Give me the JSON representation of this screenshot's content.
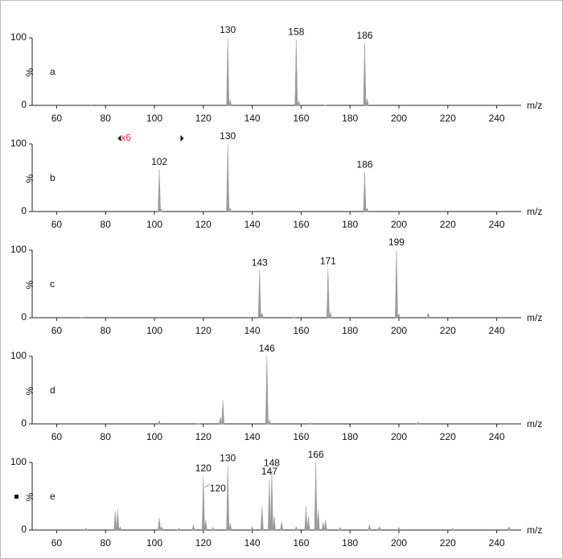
{
  "chart_data": [
    {
      "type": "bar",
      "label": "a",
      "ylabel": "%",
      "xlabel": "m/z",
      "color": "#9a9a9a",
      "x": [
        74,
        130,
        131,
        158,
        159,
        170,
        186,
        187
      ],
      "values": [
        2,
        100,
        8,
        97,
        7,
        1,
        92,
        10
      ],
      "annotations": [
        130,
        158,
        186
      ],
      "xlim": [
        50,
        250
      ],
      "xticks": [
        60,
        80,
        100,
        120,
        140,
        160,
        180,
        200,
        220,
        240
      ],
      "ylim": [
        0,
        100
      ],
      "yticks": [
        0,
        100
      ]
    },
    {
      "type": "bar",
      "label": "b",
      "ylabel": "%",
      "xlabel": "m/z",
      "color": "#9a9a9a",
      "x": [
        102,
        103,
        130,
        131,
        186,
        187
      ],
      "values": [
        62,
        3,
        100,
        5,
        58,
        5
      ],
      "annotations": [
        102,
        130,
        186
      ],
      "magnify": {
        "label": "x6",
        "range": [
          85,
          112
        ]
      },
      "xlim": [
        50,
        250
      ],
      "xticks": [
        60,
        80,
        100,
        120,
        140,
        160,
        180,
        200,
        220,
        240
      ],
      "ylim": [
        0,
        100
      ],
      "yticks": [
        0,
        100
      ]
    },
    {
      "type": "bar",
      "label": "c",
      "ylabel": "%",
      "xlabel": "m/z",
      "color": "#9a9a9a",
      "x": [
        70,
        143,
        144,
        157,
        171,
        172,
        199,
        200,
        212
      ],
      "values": [
        1,
        70,
        7,
        2,
        72,
        8,
        100,
        6,
        7
      ],
      "annotations": [
        143,
        171,
        199
      ],
      "xlim": [
        50,
        250
      ],
      "xticks": [
        60,
        80,
        100,
        120,
        140,
        160,
        180,
        200,
        220,
        240
      ],
      "ylim": [
        0,
        100
      ],
      "yticks": [
        0,
        100
      ]
    },
    {
      "type": "bar",
      "label": "d",
      "ylabel": "%",
      "xlabel": "m/z",
      "color": "#9a9a9a",
      "x": [
        102,
        118,
        127,
        128,
        146,
        147,
        164,
        208
      ],
      "values": [
        5,
        1,
        10,
        35,
        100,
        6,
        2,
        3
      ],
      "annotations": [
        146
      ],
      "xlim": [
        50,
        250
      ],
      "xticks": [
        60,
        80,
        100,
        120,
        140,
        160,
        180,
        200,
        220,
        240
      ],
      "ylim": [
        0,
        100
      ],
      "yticks": [
        0,
        100
      ]
    },
    {
      "type": "bar",
      "label": "e",
      "ylabel": "%",
      "xlabel": "m/z",
      "color": "#9a9a9a",
      "x": [
        72,
        84,
        85,
        86,
        102,
        103,
        110,
        116,
        120,
        121,
        124,
        130,
        131,
        140,
        144,
        147,
        148,
        149,
        152,
        158,
        162,
        163,
        166,
        167,
        169,
        170,
        176,
        188,
        192,
        200,
        222,
        245
      ],
      "values": [
        3,
        28,
        30,
        5,
        18,
        5,
        3,
        8,
        80,
        15,
        4,
        95,
        10,
        5,
        35,
        75,
        88,
        20,
        12,
        5,
        35,
        20,
        100,
        30,
        12,
        15,
        4,
        8,
        5,
        4,
        3,
        5
      ],
      "annotations": [
        120,
        120,
        130,
        147,
        148,
        166
      ],
      "xlim": [
        50,
        250
      ],
      "xticks": [
        60,
        80,
        100,
        120,
        140,
        160,
        180,
        200,
        220,
        240
      ],
      "ylim": [
        0,
        100
      ],
      "yticks": [
        0,
        100
      ]
    }
  ]
}
